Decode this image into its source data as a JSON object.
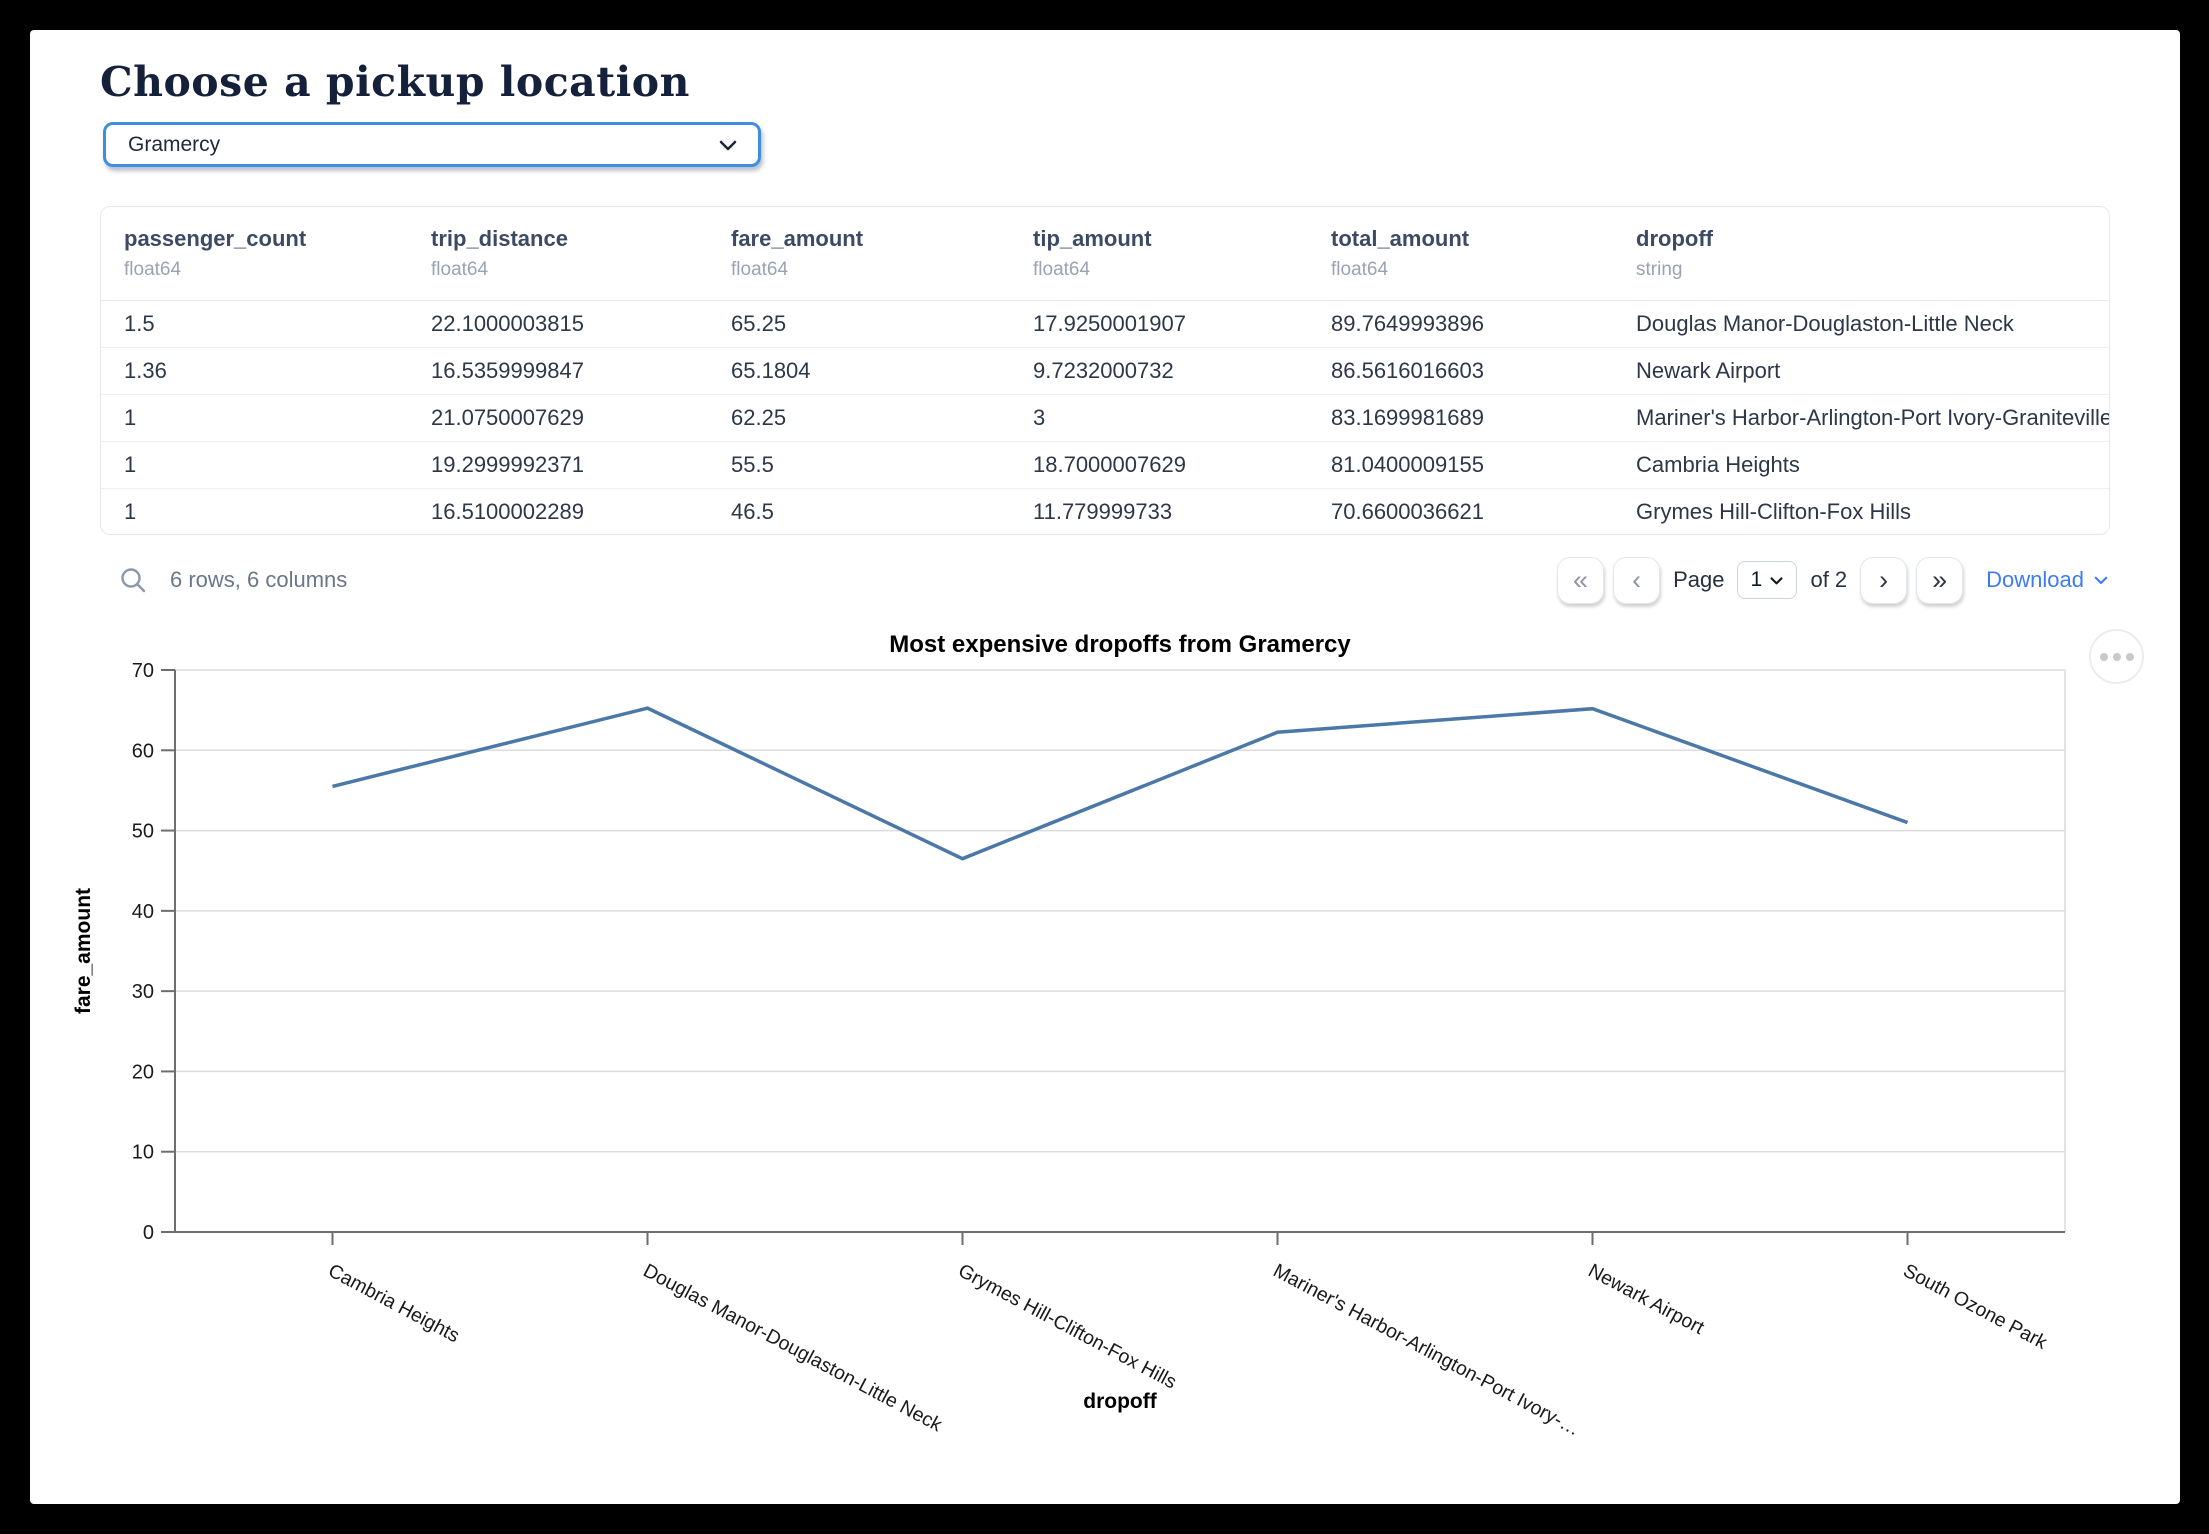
{
  "page": {
    "title": "Choose a pickup location"
  },
  "pickup_select": {
    "value": "Gramercy"
  },
  "table": {
    "columns": [
      {
        "name": "passenger_count",
        "type": "float64"
      },
      {
        "name": "trip_distance",
        "type": "float64"
      },
      {
        "name": "fare_amount",
        "type": "float64"
      },
      {
        "name": "tip_amount",
        "type": "float64"
      },
      {
        "name": "total_amount",
        "type": "float64"
      },
      {
        "name": "dropoff",
        "type": "string"
      }
    ],
    "rows": [
      [
        "1.5",
        "22.1000003815",
        "65.25",
        "17.9250001907",
        "89.7649993896",
        "Douglas Manor-Douglaston-Little Neck"
      ],
      [
        "1.36",
        "16.5359999847",
        "65.1804",
        "9.7232000732",
        "86.5616016603",
        "Newark Airport"
      ],
      [
        "1",
        "21.0750007629",
        "62.25",
        "3",
        "83.1699981689",
        "Mariner's Harbor-Arlington-Port Ivory-Graniteville"
      ],
      [
        "1",
        "19.2999992371",
        "55.5",
        "18.7000007629",
        "81.0400009155",
        "Cambria Heights"
      ],
      [
        "1",
        "16.5100002289",
        "46.5",
        "11.779999733",
        "70.6600036621",
        "Grymes Hill-Clifton-Fox Hills"
      ]
    ],
    "summary": "6 rows, 6 columns"
  },
  "pagination": {
    "page_label": "Page",
    "page_value": "1",
    "total_label": "of 2",
    "download_label": "Download",
    "icons": {
      "first": "«",
      "previous": "‹",
      "next": "›",
      "last": "»"
    }
  },
  "chart_data": {
    "type": "line",
    "title": "Most expensive dropoffs from Gramercy",
    "xlabel": "dropoff",
    "ylabel": "fare_amount",
    "ylim": [
      0,
      70
    ],
    "yticks": [
      0,
      10,
      20,
      30,
      40,
      50,
      60,
      70
    ],
    "categories": [
      "Cambria Heights",
      "Douglas Manor-Douglaston-Little Neck",
      "Grymes Hill-Clifton-Fox Hills",
      "Mariner's Harbor-Arlington-Port Ivory-…",
      "Newark Airport",
      "South Ozone Park"
    ],
    "values": [
      55.5,
      65.25,
      46.5,
      62.25,
      65.1804,
      51
    ],
    "line_color": "#4c78a8",
    "grid": true,
    "legend": "none"
  },
  "colors": {
    "accent_blue": "#3e8ee0",
    "link_blue": "#3d7bf5",
    "line": "#4c78a8"
  }
}
